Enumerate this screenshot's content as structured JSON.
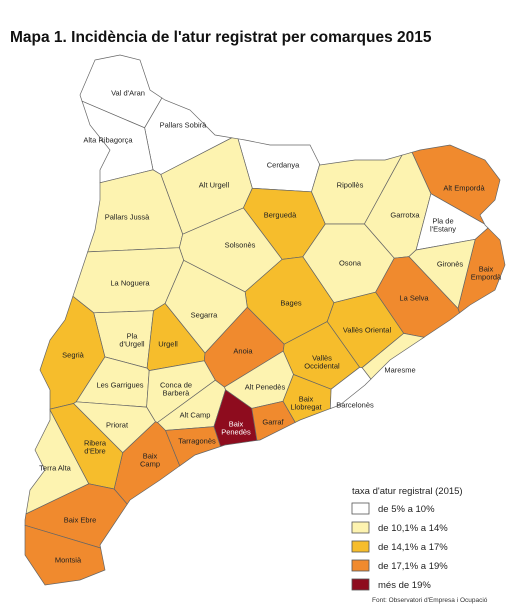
{
  "title": "Mapa 1. Incidència de l'atur registrat per comarques 2015",
  "legend": {
    "title": "taxa d'atur registral (2015)",
    "items": [
      {
        "label": "de 5% a 10%",
        "color": "#ffffff"
      },
      {
        "label": "de 10,1% a 14%",
        "color": "#fdf3b0"
      },
      {
        "label": "de 14,1% a 17%",
        "color": "#f6bd2c"
      },
      {
        "label": "de 17,1% a 19%",
        "color": "#f08a2e"
      },
      {
        "label": "més de 19%",
        "color": "#8e0c1e"
      }
    ]
  },
  "regions": [
    {
      "label": [
        "Val d'Aran"
      ],
      "class": 0
    },
    {
      "label": [
        "Pallars Sobirà"
      ],
      "class": 0
    },
    {
      "label": [
        "Alta Ribagorça"
      ],
      "class": 0
    },
    {
      "label": [
        "Cerdanya"
      ],
      "class": 0
    },
    {
      "label": [
        "Alt Urgell"
      ],
      "class": 1
    },
    {
      "label": [
        "Pallars Jussà"
      ],
      "class": 1
    },
    {
      "label": [
        "Berguedà"
      ],
      "class": 2
    },
    {
      "label": [
        "Ripollès"
      ],
      "class": 1
    },
    {
      "label": [
        "Alt Empordà"
      ],
      "class": 3
    },
    {
      "label": [
        "Garrotxa"
      ],
      "class": 1
    },
    {
      "label": [
        "Pla de",
        "l'Estany"
      ],
      "class": 0
    },
    {
      "label": [
        "Solsonès"
      ],
      "class": 1
    },
    {
      "label": [
        "Osona"
      ],
      "class": 1
    },
    {
      "label": [
        "Gironès"
      ],
      "class": 1
    },
    {
      "label": [
        "Baix",
        "Empordà"
      ],
      "class": 3
    },
    {
      "label": [
        "La Noguera"
      ],
      "class": 1
    },
    {
      "label": [
        "La Selva"
      ],
      "class": 3
    },
    {
      "label": [
        "Bages"
      ],
      "class": 2
    },
    {
      "label": [
        "Segarra"
      ],
      "class": 1
    },
    {
      "label": [
        "Pla",
        "d'Urgell"
      ],
      "class": 1
    },
    {
      "label": [
        "Urgell"
      ],
      "class": 2
    },
    {
      "label": [
        "Anoia"
      ],
      "class": 3
    },
    {
      "label": [
        "Vallès Oriental"
      ],
      "class": 2
    },
    {
      "label": [
        "Segrià"
      ],
      "class": 2
    },
    {
      "label": [
        "Vallès",
        "Occidental"
      ],
      "class": 2
    },
    {
      "label": [
        "Les Garrigues"
      ],
      "class": 1
    },
    {
      "label": [
        "Conca de",
        "Barberà"
      ],
      "class": 1
    },
    {
      "label": [
        "Maresme"
      ],
      "class": 1
    },
    {
      "label": [
        "Alt Penedès"
      ],
      "class": 1
    },
    {
      "label": [
        "Baix",
        "Llobregat"
      ],
      "class": 2
    },
    {
      "label": [
        "Barcelonès"
      ],
      "class": 0
    },
    {
      "label": [
        "Alt Camp"
      ],
      "class": 1
    },
    {
      "label": [
        "Baix",
        "Penedès"
      ],
      "class": 4
    },
    {
      "label": [
        "Garraf"
      ],
      "class": 3
    },
    {
      "label": [
        "Priorat"
      ],
      "class": 1
    },
    {
      "label": [
        "Tarragonès"
      ],
      "class": 3
    },
    {
      "label": [
        "Baix",
        "Camp"
      ],
      "class": 3
    },
    {
      "label": [
        "Terra Alta"
      ],
      "class": 1
    },
    {
      "label": [
        "Ribera",
        "d'Ebre"
      ],
      "class": 2
    },
    {
      "label": [
        "Baix Ebre"
      ],
      "class": 3
    },
    {
      "label": [
        "Montsià"
      ],
      "class": 3
    }
  ],
  "source": "Font: Observatori d'Empresa i Ocupació"
}
